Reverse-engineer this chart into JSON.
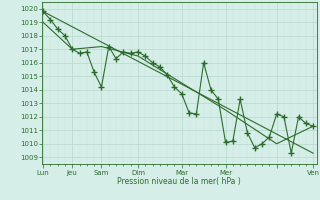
{
  "title": "",
  "xlabel": "Pression niveau de la mer( hPa )",
  "bg_color": "#d5eee8",
  "grid_major_color": "#b8d8cf",
  "grid_minor_color": "#c8e4dc",
  "line_color": "#2d6b2d",
  "ylim_min": 1008.5,
  "ylim_max": 1020.5,
  "yticks": [
    1009,
    1010,
    1011,
    1012,
    1013,
    1014,
    1015,
    1016,
    1017,
    1018,
    1019,
    1020
  ],
  "xlim_min": -0.2,
  "xlim_max": 37.5,
  "major_tick_positions": [
    0,
    4,
    8,
    13,
    19,
    25,
    32,
    37
  ],
  "major_tick_labels": [
    "Lun",
    "Jeu",
    "Sam",
    "Dim",
    "Mar",
    "Mer",
    "",
    "Ven"
  ],
  "trend_line": {
    "x": [
      0,
      37
    ],
    "y": [
      1019.8,
      1009.3
    ]
  },
  "smooth_line": {
    "x": [
      0,
      4,
      8,
      13,
      19,
      25,
      32,
      37
    ],
    "y": [
      1019.0,
      1017.0,
      1017.2,
      1016.5,
      1014.5,
      1012.5,
      1010.0,
      1011.3
    ]
  },
  "main_line_x": [
    0,
    1,
    2,
    3,
    4,
    5,
    6,
    7,
    8,
    9,
    10,
    11,
    12,
    13,
    14,
    15,
    16,
    17,
    18,
    19,
    20,
    21,
    22,
    23,
    24,
    25,
    26,
    27,
    28,
    29,
    30,
    31,
    32,
    33,
    34,
    35,
    36,
    37
  ],
  "main_line_y": [
    1019.8,
    1019.2,
    1018.5,
    1018.0,
    1017.0,
    1016.7,
    1016.8,
    1015.3,
    1014.2,
    1017.2,
    1016.3,
    1016.8,
    1016.7,
    1016.8,
    1016.5,
    1016.0,
    1015.7,
    1015.1,
    1014.2,
    1013.7,
    1012.3,
    1012.2,
    1016.0,
    1014.0,
    1013.3,
    1010.1,
    1010.2,
    1013.3,
    1010.8,
    1009.7,
    1010.0,
    1010.5,
    1012.2,
    1012.0,
    1009.3,
    1012.0,
    1011.5,
    1011.3
  ]
}
